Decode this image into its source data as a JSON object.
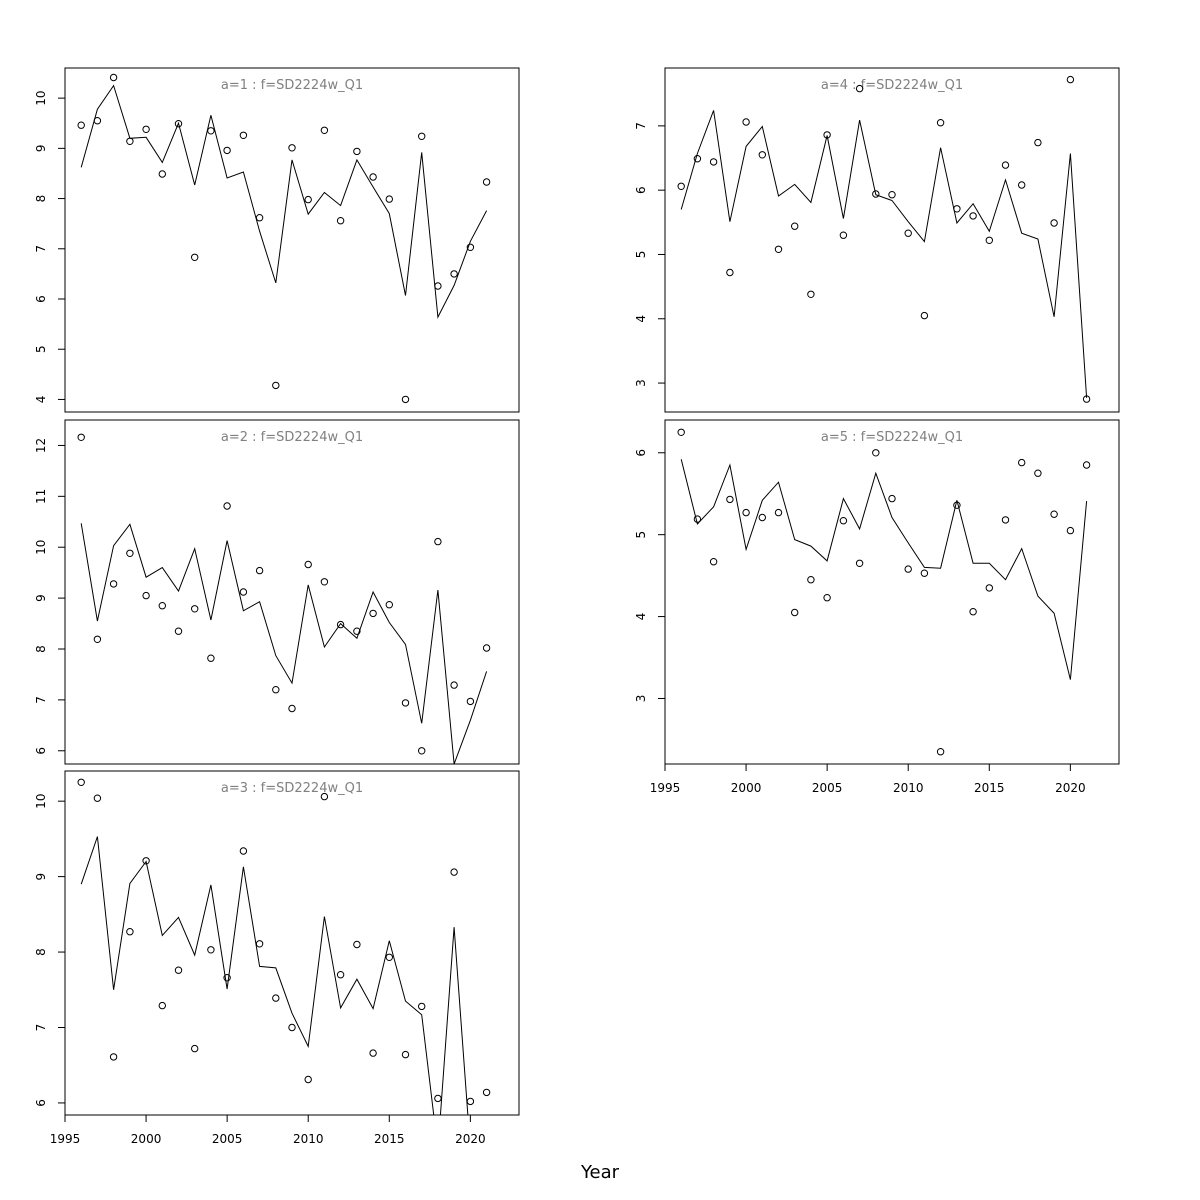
{
  "figure": {
    "xlabel": "Year"
  },
  "chart_data": [
    {
      "type": "line",
      "title": "a=1 : f=SD2224w_Q1",
      "x": [
        1996,
        1997,
        1998,
        1999,
        2000,
        2001,
        2002,
        2003,
        2004,
        2005,
        2006,
        2007,
        2008,
        2009,
        2010,
        2011,
        2012,
        2013,
        2014,
        2015,
        2016,
        2017,
        2018,
        2019,
        2020,
        2021
      ],
      "series": [
        {
          "kind": "fitted-line",
          "values": [
            8.62,
            9.78,
            10.25,
            9.2,
            9.22,
            8.72,
            9.5,
            8.27,
            9.66,
            8.41,
            8.53,
            7.35,
            6.32,
            8.77,
            7.69,
            8.12,
            7.86,
            8.77,
            8.23,
            7.7,
            6.07,
            8.92,
            5.64,
            6.27,
            7.15,
            7.76
          ]
        },
        {
          "kind": "observed-points",
          "values": [
            9.46,
            9.55,
            10.41,
            9.14,
            9.38,
            8.49,
            9.49,
            6.83,
            9.35,
            8.96,
            9.26,
            7.62,
            4.28,
            9.01,
            7.98,
            9.36,
            7.56,
            8.94,
            8.43,
            7.99,
            4.0,
            9.24,
            6.26,
            6.5,
            7.03,
            8.33
          ]
        }
      ],
      "yticks": [
        4,
        5,
        6,
        7,
        8,
        9,
        10
      ],
      "ylim": [
        3.75,
        10.6
      ],
      "xlim": [
        1995,
        2023
      ]
    },
    {
      "type": "line",
      "title": "a=2 : f=SD2224w_Q1",
      "x": [
        1996,
        1997,
        1998,
        1999,
        2000,
        2001,
        2002,
        2003,
        2004,
        2005,
        2006,
        2007,
        2008,
        2009,
        2010,
        2011,
        2012,
        2013,
        2014,
        2015,
        2016,
        2017,
        2018,
        2019,
        2020,
        2021
      ],
      "series": [
        {
          "kind": "fitted-line",
          "values": [
            10.47,
            8.55,
            10.03,
            10.45,
            9.41,
            9.6,
            9.14,
            9.97,
            8.57,
            10.13,
            8.75,
            8.93,
            7.87,
            7.33,
            9.26,
            8.04,
            8.5,
            8.21,
            9.12,
            8.52,
            8.09,
            6.54,
            9.16,
            5.74,
            6.6,
            7.56
          ]
        },
        {
          "kind": "observed-points",
          "values": [
            12.16,
            8.19,
            9.28,
            9.88,
            9.05,
            8.85,
            8.35,
            8.79,
            7.82,
            10.81,
            9.12,
            9.54,
            7.2,
            6.83,
            9.66,
            9.32,
            8.48,
            8.35,
            8.7,
            8.87,
            6.94,
            6.0,
            10.11,
            7.29,
            6.97,
            8.02
          ]
        }
      ],
      "yticks": [
        6,
        7,
        8,
        9,
        10,
        11,
        12
      ],
      "ylim": [
        5.74,
        12.5
      ],
      "xlim": [
        1995,
        2023
      ]
    },
    {
      "type": "line",
      "title": "a=3 : f=SD2224w_Q1",
      "x": [
        1996,
        1997,
        1998,
        1999,
        2000,
        2001,
        2002,
        2003,
        2004,
        2005,
        2006,
        2007,
        2008,
        2009,
        2010,
        2011,
        2012,
        2013,
        2014,
        2015,
        2016,
        2017,
        2018,
        2019,
        2020,
        2021
      ],
      "series": [
        {
          "kind": "fitted-line",
          "values": [
            8.9,
            9.53,
            7.5,
            8.91,
            9.2,
            8.22,
            8.46,
            7.96,
            8.89,
            7.51,
            9.13,
            7.81,
            7.79,
            7.19,
            6.75,
            8.47,
            7.26,
            7.64,
            7.25,
            8.15,
            7.35,
            7.17,
            5.38,
            8.33,
            5.38,
            5.38
          ]
        },
        {
          "kind": "observed-points",
          "values": [
            10.25,
            10.04,
            6.61,
            8.27,
            9.21,
            7.29,
            7.76,
            6.72,
            8.03,
            7.66,
            9.34,
            8.11,
            7.39,
            7.0,
            6.31,
            10.06,
            7.7,
            8.1,
            6.66,
            7.93,
            6.64,
            7.28,
            6.06,
            9.06,
            6.02,
            6.14
          ]
        }
      ],
      "yticks": [
        6,
        7,
        8,
        9,
        10
      ],
      "ylim": [
        5.84,
        10.4
      ],
      "xlim": [
        1995,
        2023
      ],
      "xticks": [
        1995,
        2000,
        2005,
        2010,
        2015,
        2020
      ]
    },
    {
      "type": "line",
      "title": "a=4 : f=SD2224w_Q1",
      "x": [
        1996,
        1997,
        1998,
        1999,
        2000,
        2001,
        2002,
        2003,
        2004,
        2005,
        2006,
        2007,
        2008,
        2009,
        2010,
        2011,
        2012,
        2013,
        2014,
        2015,
        2016,
        2017,
        2018,
        2019,
        2020,
        2021
      ],
      "series": [
        {
          "kind": "fitted-line",
          "values": [
            5.7,
            6.57,
            7.24,
            5.51,
            6.68,
            6.99,
            5.91,
            6.09,
            5.81,
            6.85,
            5.56,
            7.09,
            5.93,
            5.84,
            5.51,
            5.2,
            6.66,
            5.49,
            5.79,
            5.36,
            6.16,
            5.33,
            5.24,
            4.03,
            6.57,
            2.77
          ]
        },
        {
          "kind": "observed-points",
          "values": [
            6.06,
            6.49,
            6.44,
            4.72,
            7.06,
            6.55,
            5.08,
            5.44,
            4.38,
            6.86,
            5.3,
            7.58,
            5.94,
            5.93,
            5.33,
            4.05,
            7.05,
            5.71,
            5.6,
            5.22,
            6.39,
            6.08,
            6.74,
            5.49,
            7.72,
            2.75
          ]
        }
      ],
      "yticks": [
        3,
        4,
        5,
        6,
        7
      ],
      "ylim": [
        2.55,
        7.9
      ],
      "xlim": [
        1995,
        2023
      ]
    },
    {
      "type": "line",
      "title": "a=5 : f=SD2224w_Q1",
      "x": [
        1996,
        1997,
        1998,
        1999,
        2000,
        2001,
        2002,
        2003,
        2004,
        2005,
        2006,
        2007,
        2008,
        2009,
        2010,
        2011,
        2012,
        2013,
        2014,
        2015,
        2016,
        2017,
        2018,
        2019,
        2020,
        2021
      ],
      "series": [
        {
          "kind": "fitted-line",
          "values": [
            5.92,
            5.13,
            5.34,
            5.85,
            4.82,
            5.42,
            5.64,
            4.94,
            4.86,
            4.68,
            5.44,
            5.07,
            5.75,
            5.21,
            4.9,
            4.6,
            4.59,
            5.42,
            4.65,
            4.65,
            4.45,
            4.83,
            4.25,
            4.04,
            3.23,
            5.41
          ]
        },
        {
          "kind": "observed-points",
          "values": [
            6.25,
            5.19,
            4.67,
            5.43,
            5.27,
            5.21,
            5.27,
            4.05,
            4.45,
            4.23,
            5.17,
            4.65,
            6.0,
            5.44,
            4.58,
            4.53,
            2.35,
            5.36,
            4.06,
            4.35,
            5.18,
            5.88,
            5.75,
            5.25,
            5.05,
            5.85
          ]
        }
      ],
      "yticks": [
        3,
        4,
        5,
        6
      ],
      "ylim": [
        2.2,
        6.4
      ],
      "xlim": [
        1995,
        2023
      ],
      "xticks": [
        1995,
        2000,
        2005,
        2010,
        2015,
        2020
      ]
    }
  ]
}
